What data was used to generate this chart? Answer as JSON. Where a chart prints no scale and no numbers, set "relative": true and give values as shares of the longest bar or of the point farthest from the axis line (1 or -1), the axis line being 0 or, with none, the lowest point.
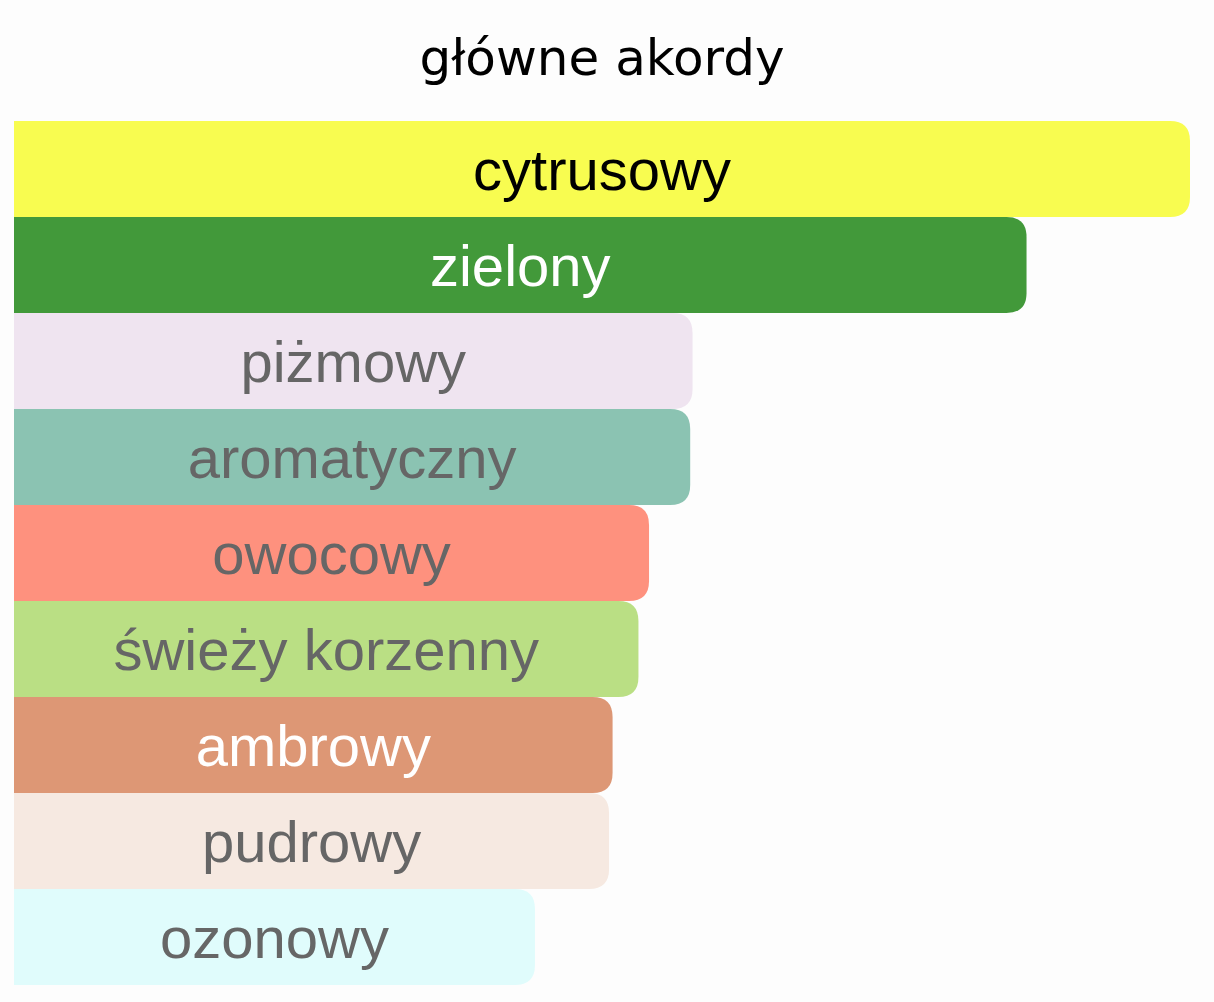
{
  "chart_data": {
    "type": "bar",
    "orientation": "horizontal",
    "relative": true,
    "title": "główne akordy",
    "categories": [
      "cytrusowy",
      "zielony",
      "piżmowy",
      "aromatyczny",
      "owocowy",
      "świeży korzenny",
      "ambrowy",
      "pudrowy",
      "ozonowy"
    ],
    "values": [
      1,
      0.861,
      0.577,
      0.575,
      0.54,
      0.531,
      0.509,
      0.506,
      0.443
    ],
    "colors": [
      "#f8fc50",
      "#42993a",
      "#efe4f0",
      "#8bc3b2",
      "#fe917e",
      "#badf84",
      "#dd9775",
      "#f6e9e1",
      "#e0fcfc"
    ]
  }
}
